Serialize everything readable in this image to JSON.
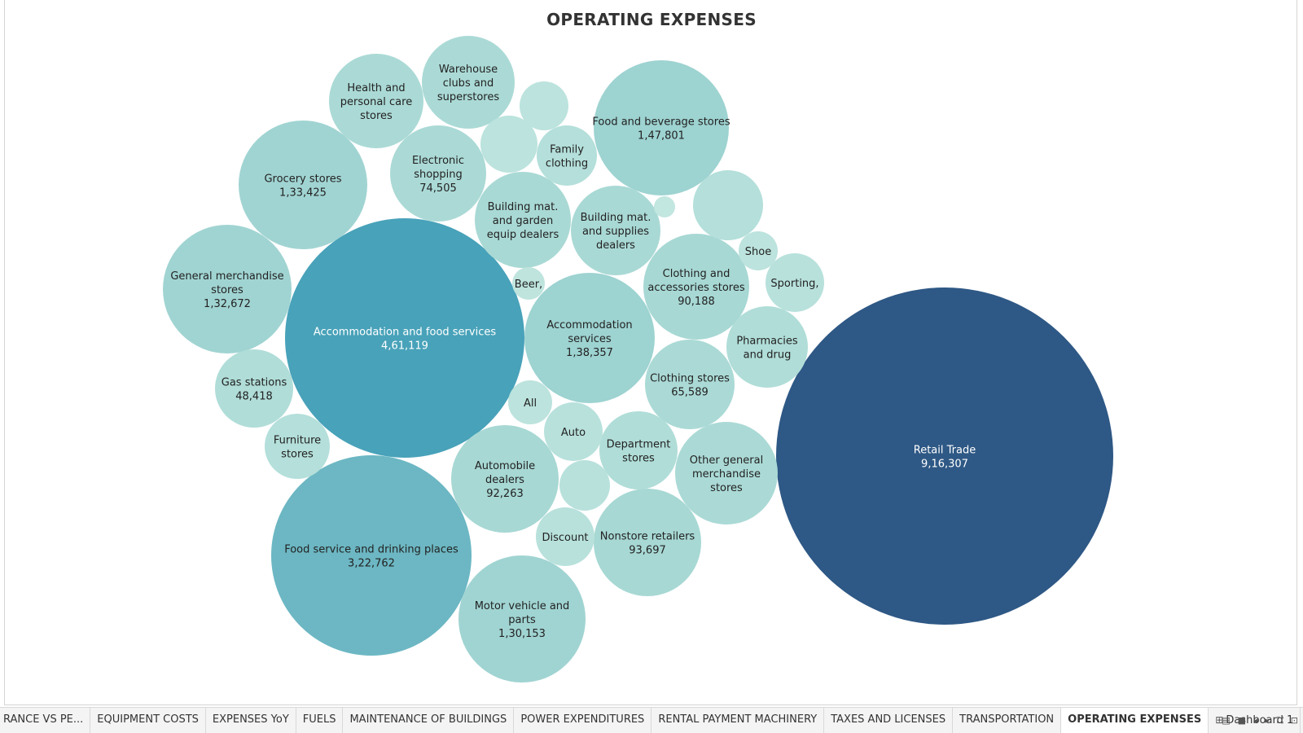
{
  "chart_data": {
    "type": "bubble",
    "title": "OPERATING EXPENSES",
    "bubbles": [
      {
        "label": "Retail Trade",
        "value": "9,16,307",
        "color": "#2e5885",
        "text": "#ffffff"
      },
      {
        "label": "Accommodation and food services",
        "value": "4,61,119",
        "color": "#48a2b9",
        "text": "#ffffff"
      },
      {
        "label": "Food service and drinking places",
        "value": "3,22,762",
        "color": "#6cb7c3",
        "text": "#222222"
      },
      {
        "label": "Food and beverage stores",
        "value": "1,47,801",
        "color": "#9dd3d1",
        "text": "#222222"
      },
      {
        "label": "Accommodation services",
        "value": "1,38,357",
        "color": "#9dd3d1",
        "text": "#222222"
      },
      {
        "label": "Grocery stores",
        "value": "1,33,425",
        "color": "#a0d4d2",
        "text": "#222222"
      },
      {
        "label": "General merchandise stores",
        "value": "1,32,672",
        "color": "#a0d4d2",
        "text": "#222222"
      },
      {
        "label": "Motor vehicle and parts",
        "value": "1,30,153",
        "color": "#a0d4d2",
        "text": "#222222"
      },
      {
        "label": "Nonstore retailers",
        "value": "93,697",
        "color": "#a7d8d4",
        "text": "#222222"
      },
      {
        "label": "Automobile dealers",
        "value": "92,263",
        "color": "#a7d8d4",
        "text": "#222222"
      },
      {
        "label": "Clothing and accessories stores",
        "value": "90,188",
        "color": "#a7d8d4",
        "text": "#222222"
      },
      {
        "label": "Electronic shopping",
        "value": "74,505",
        "color": "#abdad6",
        "text": "#222222"
      },
      {
        "label": "Clothing stores",
        "value": "65,589",
        "color": "#abdad6",
        "text": "#222222"
      },
      {
        "label": "Gas stations",
        "value": "48,418",
        "color": "#b0ddd8",
        "text": "#222222"
      },
      {
        "label": "Building mat. and garden equip dealers",
        "value": "",
        "color": "#a9d9d5",
        "text": "#222222"
      },
      {
        "label": "Building mat. and supplies dealers",
        "value": "",
        "color": "#a9d9d5",
        "text": "#222222"
      },
      {
        "label": "Health and personal care stores",
        "value": "",
        "color": "#abdad6",
        "text": "#222222"
      },
      {
        "label": "Warehouse clubs and superstores",
        "value": "",
        "color": "#abdad6",
        "text": "#222222"
      },
      {
        "label": "Other general merchandise stores",
        "value": "",
        "color": "#abdad6",
        "text": "#222222"
      },
      {
        "label": "Department stores",
        "value": "",
        "color": "#b0ddd8",
        "text": "#222222"
      },
      {
        "label": "Pharmacies and drug",
        "value": "",
        "color": "#b0ddd8",
        "text": "#222222"
      },
      {
        "label": "Furniture stores",
        "value": "",
        "color": "#b4dfda",
        "text": "#222222"
      },
      {
        "label": "Family clothing",
        "value": "",
        "color": "#b4dfda",
        "text": "#222222"
      },
      {
        "label": "Sporting,",
        "value": "",
        "color": "#b8e1dc",
        "text": "#222222"
      },
      {
        "label": "Auto",
        "value": "",
        "color": "#b8e1dc",
        "text": "#222222"
      },
      {
        "label": "Discount",
        "value": "",
        "color": "#b8e1dc",
        "text": "#222222"
      },
      {
        "label": "All",
        "value": "",
        "color": "#bce3dd",
        "text": "#222222"
      },
      {
        "label": "Shoe",
        "value": "",
        "color": "#bce3dd",
        "text": "#222222"
      },
      {
        "label": "Beer,",
        "value": "",
        "color": "#bfe4de",
        "text": "#222222"
      },
      {
        "label": "",
        "value": "",
        "color": "#b4dfda",
        "text": "#222222"
      },
      {
        "label": "",
        "value": "",
        "color": "#b8e1dc",
        "text": "#222222"
      },
      {
        "label": "",
        "value": "",
        "color": "#bce3dd",
        "text": "#222222"
      },
      {
        "label": "",
        "value": "",
        "color": "#bce3dd",
        "text": "#222222"
      },
      {
        "label": "",
        "value": "",
        "color": "#c2e6e0",
        "text": "#222222"
      }
    ]
  },
  "tabs": [
    {
      "label": "RANCE VS PE...",
      "active": false
    },
    {
      "label": "EQUIPMENT COSTS",
      "active": false
    },
    {
      "label": "EXPENSES YoY",
      "active": false
    },
    {
      "label": "FUELS",
      "active": false
    },
    {
      "label": "MAINTENANCE OF BUILDINGS",
      "active": false
    },
    {
      "label": "POWER EXPENDITURES",
      "active": false
    },
    {
      "label": "RENTAL PAYMENT MACHINERY",
      "active": false
    },
    {
      "label": "TAXES AND LICENSES",
      "active": false
    },
    {
      "label": "TRANSPORTATION",
      "active": false
    },
    {
      "label": "OPERATING EXPENSES",
      "active": true
    },
    {
      "label": "Dashboard 1",
      "active": false,
      "icon": "dashboard-icon"
    }
  ],
  "controls": [
    {
      "name": "grid-view-icon",
      "glyph": "▤"
    },
    {
      "name": "filmstrip-view-icon",
      "glyph": "■"
    },
    {
      "name": "prev-sheet-icon",
      "glyph": "◂"
    },
    {
      "name": "next-sheet-icon",
      "glyph": "▸"
    },
    {
      "name": "fullscreen-icon",
      "glyph": "⛶"
    },
    {
      "name": "presentation-icon",
      "glyph": "⊡"
    }
  ]
}
